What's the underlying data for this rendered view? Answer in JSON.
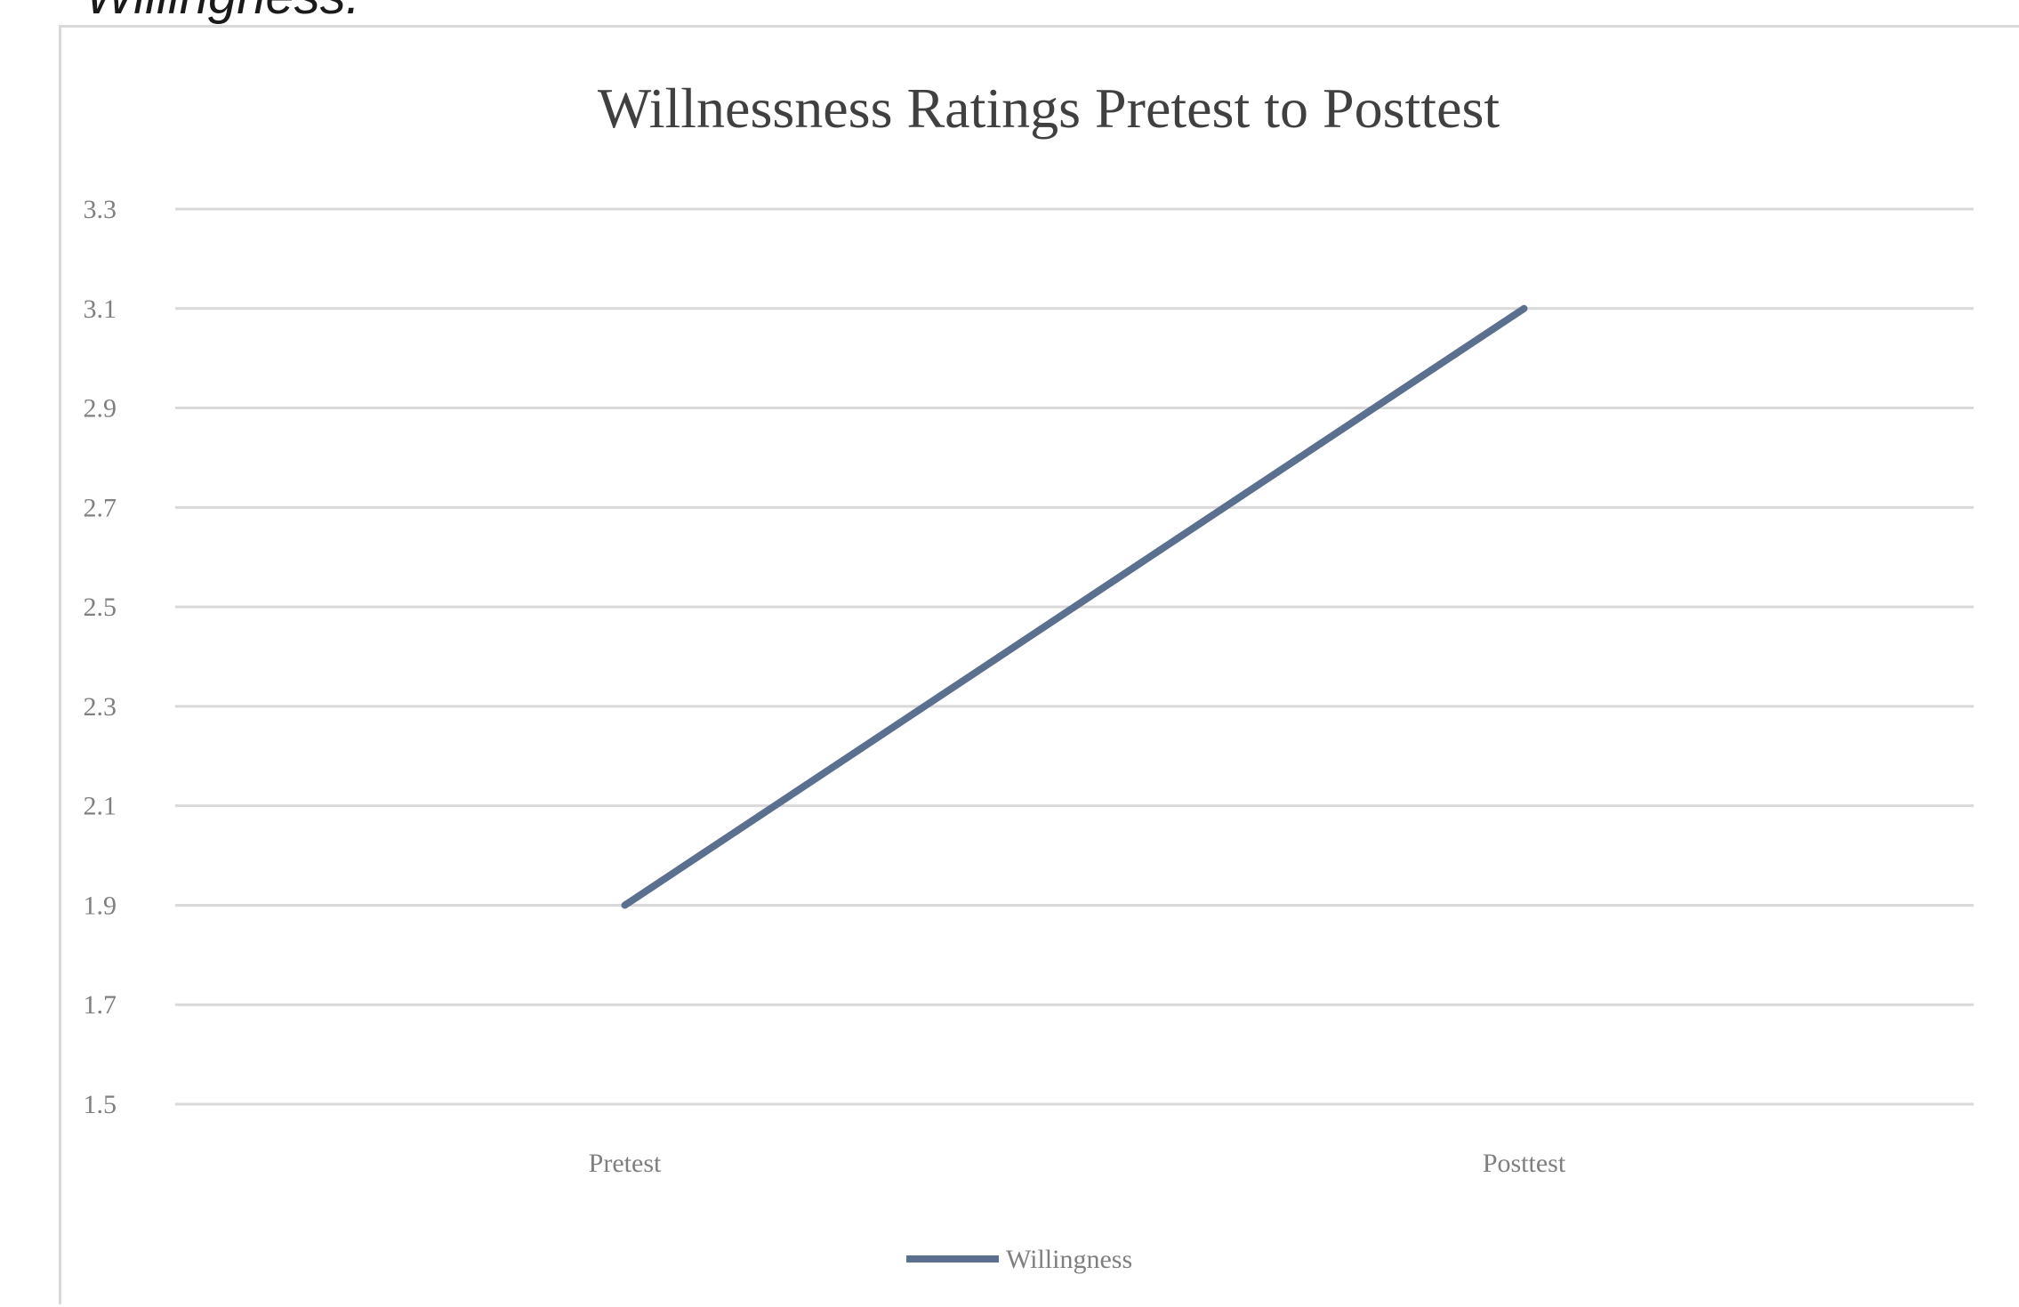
{
  "page": {
    "caption": "Willingness."
  },
  "chart_data": {
    "type": "line",
    "title": "Willnessness Ratings Pretest to Posttest",
    "xlabel": "",
    "ylabel": "",
    "categories": [
      "Pretest",
      "Posttest"
    ],
    "series": [
      {
        "name": "Willingness",
        "values": [
          1.9,
          3.1
        ],
        "color": "#5b6f8f"
      }
    ],
    "ylim": [
      1.5,
      3.3
    ],
    "yticks": [
      1.5,
      1.7,
      1.9,
      2.1,
      2.3,
      2.5,
      2.7,
      2.9,
      3.1,
      3.3
    ],
    "grid": true,
    "legend": "bottom"
  }
}
